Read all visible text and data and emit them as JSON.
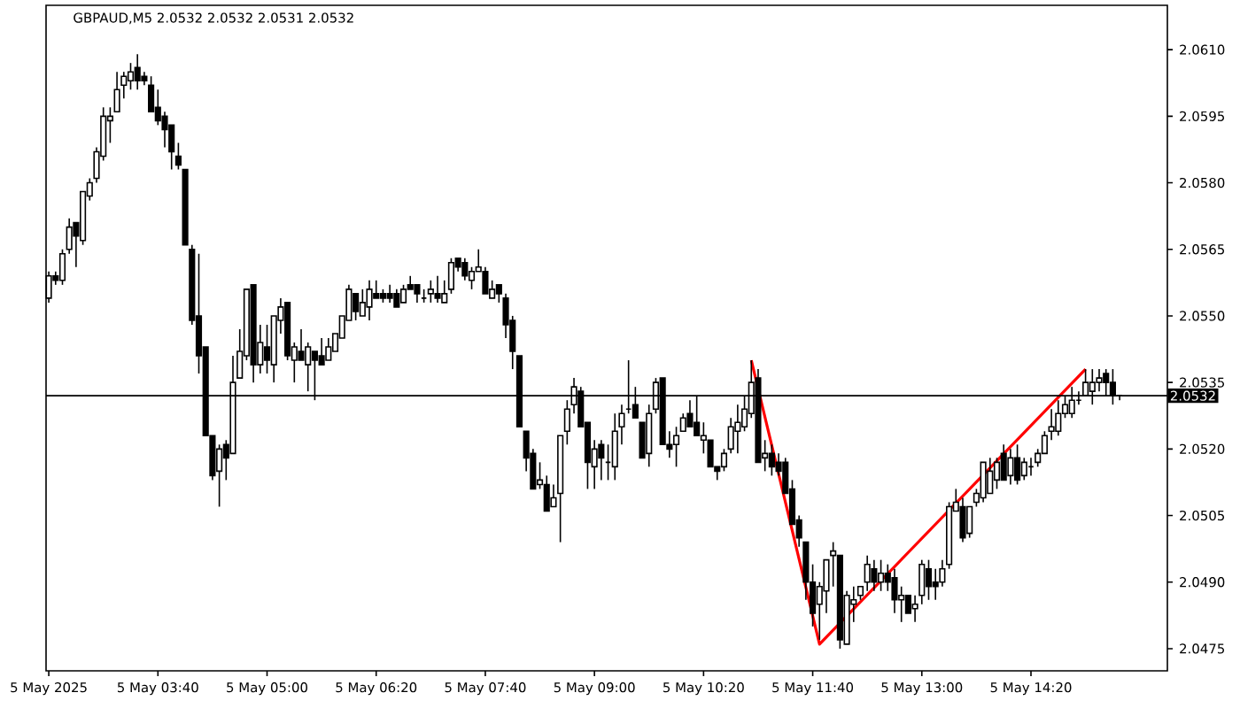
{
  "chart_data": {
    "type": "candlestick",
    "title": "GBPAUD,M5 2.0532 2.0532 2.0531 2.0532",
    "x": [
      "2025-05-05T02:20",
      "2025-05-05T02:25",
      "2025-05-05T02:30",
      "2025-05-05T02:35",
      "2025-05-05T02:40",
      "2025-05-05T02:45",
      "2025-05-05T02:50",
      "2025-05-05T02:55",
      "2025-05-05T03:00",
      "2025-05-05T03:05",
      "2025-05-05T03:10",
      "2025-05-05T03:15",
      "2025-05-05T03:20",
      "2025-05-05T03:25",
      "2025-05-05T03:30",
      "2025-05-05T03:35",
      "2025-05-05T03:40",
      "2025-05-05T03:45",
      "2025-05-05T03:50",
      "2025-05-05T03:55",
      "2025-05-05T04:00",
      "2025-05-05T04:05",
      "2025-05-05T04:10",
      "2025-05-05T04:15",
      "2025-05-05T04:20",
      "2025-05-05T04:25",
      "2025-05-05T04:30",
      "2025-05-05T04:35",
      "2025-05-05T04:40",
      "2025-05-05T04:45",
      "2025-05-05T04:50",
      "2025-05-05T04:55",
      "2025-05-05T05:00",
      "2025-05-05T05:05",
      "2025-05-05T05:10",
      "2025-05-05T05:15",
      "2025-05-05T05:20",
      "2025-05-05T05:25",
      "2025-05-05T05:30",
      "2025-05-05T05:35",
      "2025-05-05T05:40",
      "2025-05-05T05:45",
      "2025-05-05T05:50",
      "2025-05-05T05:55",
      "2025-05-05T06:00",
      "2025-05-05T06:05",
      "2025-05-05T06:10",
      "2025-05-05T06:15",
      "2025-05-05T06:20",
      "2025-05-05T06:25",
      "2025-05-05T06:30",
      "2025-05-05T06:35",
      "2025-05-05T06:40",
      "2025-05-05T06:45",
      "2025-05-05T06:50",
      "2025-05-05T06:55",
      "2025-05-05T07:00",
      "2025-05-05T07:05",
      "2025-05-05T07:10",
      "2025-05-05T07:15",
      "2025-05-05T07:20",
      "2025-05-05T07:25",
      "2025-05-05T07:30",
      "2025-05-05T07:35",
      "2025-05-05T07:40",
      "2025-05-05T07:45",
      "2025-05-05T07:50",
      "2025-05-05T07:55",
      "2025-05-05T08:00",
      "2025-05-05T08:05",
      "2025-05-05T08:10",
      "2025-05-05T08:15",
      "2025-05-05T08:20",
      "2025-05-05T08:25",
      "2025-05-05T08:30",
      "2025-05-05T08:35",
      "2025-05-05T08:40",
      "2025-05-05T08:45",
      "2025-05-05T08:50",
      "2025-05-05T08:55",
      "2025-05-05T09:00",
      "2025-05-05T09:05",
      "2025-05-05T09:10",
      "2025-05-05T09:15",
      "2025-05-05T09:20",
      "2025-05-05T09:25",
      "2025-05-05T09:30",
      "2025-05-05T09:35",
      "2025-05-05T09:40",
      "2025-05-05T09:45",
      "2025-05-05T09:50",
      "2025-05-05T09:55",
      "2025-05-05T10:00",
      "2025-05-05T10:05",
      "2025-05-05T10:10",
      "2025-05-05T10:15",
      "2025-05-05T10:20",
      "2025-05-05T10:25",
      "2025-05-05T10:30",
      "2025-05-05T10:35",
      "2025-05-05T10:40",
      "2025-05-05T10:45",
      "2025-05-05T10:50",
      "2025-05-05T10:55",
      "2025-05-05T11:00",
      "2025-05-05T11:05",
      "2025-05-05T11:10",
      "2025-05-05T11:15",
      "2025-05-05T11:20",
      "2025-05-05T11:25",
      "2025-05-05T11:30",
      "2025-05-05T11:35",
      "2025-05-05T11:40",
      "2025-05-05T11:45",
      "2025-05-05T11:50",
      "2025-05-05T11:55",
      "2025-05-05T12:00",
      "2025-05-05T12:05",
      "2025-05-05T12:10",
      "2025-05-05T12:15",
      "2025-05-05T12:20",
      "2025-05-05T12:25",
      "2025-05-05T12:30",
      "2025-05-05T12:35",
      "2025-05-05T12:40",
      "2025-05-05T12:45",
      "2025-05-05T12:50",
      "2025-05-05T12:55",
      "2025-05-05T13:00",
      "2025-05-05T13:05",
      "2025-05-05T13:10",
      "2025-05-05T13:15",
      "2025-05-05T13:20",
      "2025-05-05T13:25",
      "2025-05-05T13:30",
      "2025-05-05T13:35",
      "2025-05-05T13:40",
      "2025-05-05T13:45",
      "2025-05-05T13:50",
      "2025-05-05T13:55",
      "2025-05-05T14:00",
      "2025-05-05T14:05",
      "2025-05-05T14:10",
      "2025-05-05T14:15",
      "2025-05-05T14:20",
      "2025-05-05T14:25",
      "2025-05-05T14:30",
      "2025-05-05T14:35",
      "2025-05-05T14:40",
      "2025-05-05T14:45",
      "2025-05-05T14:50",
      "2025-05-05T14:55",
      "2025-05-05T15:00",
      "2025-05-05T15:05",
      "2025-05-05T15:10",
      "2025-05-05T15:15",
      "2025-05-05T15:20",
      "2025-05-05T15:25"
    ],
    "ohlc": [
      [
        2.0554,
        2.056,
        2.0553,
        2.0559
      ],
      [
        2.0559,
        2.056,
        2.0557,
        2.0558
      ],
      [
        2.0558,
        2.0565,
        2.0557,
        2.0564
      ],
      [
        2.0565,
        2.0572,
        2.0564,
        2.057
      ],
      [
        2.0571,
        2.0571,
        2.0561,
        2.0568
      ],
      [
        2.0567,
        2.0578,
        2.0566,
        2.0578
      ],
      [
        2.0577,
        2.0581,
        2.0576,
        2.058
      ],
      [
        2.0581,
        2.0588,
        2.058,
        2.0587
      ],
      [
        2.0586,
        2.0597,
        2.0585,
        2.0595
      ],
      [
        2.0594,
        2.0597,
        2.0589,
        2.0595
      ],
      [
        2.0596,
        2.0605,
        2.0596,
        2.0601
      ],
      [
        2.0602,
        2.0605,
        2.0599,
        2.0604
      ],
      [
        2.0603,
        2.0607,
        2.0601,
        2.0605
      ],
      [
        2.0606,
        2.0609,
        2.0601,
        2.0603
      ],
      [
        2.0604,
        2.0605,
        2.0602,
        2.0603
      ],
      [
        2.0602,
        2.0604,
        2.0596,
        2.0596
      ],
      [
        2.0597,
        2.0601,
        2.0593,
        2.0594
      ],
      [
        2.0595,
        2.0596,
        2.0588,
        2.0592
      ],
      [
        2.0593,
        2.0593,
        2.0583,
        2.0587
      ],
      [
        2.0586,
        2.0589,
        2.0583,
        2.0584
      ],
      [
        2.0583,
        2.0583,
        2.0566,
        2.0566
      ],
      [
        2.0565,
        2.0566,
        2.0548,
        2.0549
      ],
      [
        2.055,
        2.0564,
        2.0537,
        2.0541
      ],
      [
        2.0543,
        2.0543,
        2.0523,
        2.0523
      ],
      [
        2.0523,
        2.0523,
        2.0513,
        2.0514
      ],
      [
        2.0515,
        2.0521,
        2.0507,
        2.052
      ],
      [
        2.0521,
        2.0522,
        2.0513,
        2.0518
      ],
      [
        2.0519,
        2.0541,
        2.0519,
        2.0535
      ],
      [
        2.0536,
        2.0547,
        2.0536,
        2.0542
      ],
      [
        2.0541,
        2.0556,
        2.054,
        2.0556
      ],
      [
        2.0557,
        2.0557,
        2.0535,
        2.0539
      ],
      [
        2.0539,
        2.0548,
        2.0537,
        2.0544
      ],
      [
        2.0543,
        2.0548,
        2.0537,
        2.054
      ],
      [
        2.0539,
        2.055,
        2.0535,
        2.055
      ],
      [
        2.0549,
        2.0554,
        2.0546,
        2.0552
      ],
      [
        2.0553,
        2.0553,
        2.054,
        2.0541
      ],
      [
        2.054,
        2.0544,
        2.0535,
        2.0543
      ],
      [
        2.0542,
        2.0547,
        2.054,
        2.054
      ],
      [
        2.0539,
        2.0544,
        2.0533,
        2.0543
      ],
      [
        2.0542,
        2.0542,
        2.0531,
        2.054
      ],
      [
        2.0541,
        2.0545,
        2.0539,
        2.0539
      ],
      [
        2.054,
        2.0545,
        2.054,
        2.0543
      ],
      [
        2.0542,
        2.0546,
        2.0542,
        2.0546
      ],
      [
        2.0545,
        2.055,
        2.0545,
        2.055
      ],
      [
        2.0549,
        2.0557,
        2.0549,
        2.0556
      ],
      [
        2.0555,
        2.0555,
        2.0549,
        2.0551
      ],
      [
        2.055,
        2.0556,
        2.055,
        2.0553
      ],
      [
        2.0552,
        2.0558,
        2.0549,
        2.0556
      ],
      [
        2.0555,
        2.0558,
        2.0554,
        2.0554
      ],
      [
        2.0555,
        2.0556,
        2.0553,
        2.0554
      ],
      [
        2.0555,
        2.0557,
        2.0553,
        2.0554
      ],
      [
        2.0555,
        2.0556,
        2.0552,
        2.0552
      ],
      [
        2.0553,
        2.0557,
        2.0553,
        2.0556
      ],
      [
        2.0557,
        2.0559,
        2.0556,
        2.0556
      ],
      [
        2.0557,
        2.0557,
        2.0553,
        2.0555
      ],
      [
        2.0554,
        2.0556,
        2.0553,
        2.0554
      ],
      [
        2.0555,
        2.0558,
        2.0553,
        2.0556
      ],
      [
        2.0555,
        2.0559,
        2.0553,
        2.0554
      ],
      [
        2.0553,
        2.0558,
        2.0553,
        2.0555
      ],
      [
        2.0556,
        2.0563,
        2.0555,
        2.0562
      ],
      [
        2.0563,
        2.0563,
        2.056,
        2.0561
      ],
      [
        2.0562,
        2.0563,
        2.0558,
        2.0559
      ],
      [
        2.0558,
        2.0561,
        2.0556,
        2.056
      ],
      [
        2.056,
        2.0565,
        2.056,
        2.0561
      ],
      [
        2.056,
        2.0561,
        2.0555,
        2.0555
      ],
      [
        2.0554,
        2.0558,
        2.0554,
        2.0556
      ],
      [
        2.0557,
        2.0557,
        2.0553,
        2.0555
      ],
      [
        2.0554,
        2.0555,
        2.0545,
        2.0548
      ],
      [
        2.0549,
        2.055,
        2.0538,
        2.0542
      ],
      [
        2.0541,
        2.0541,
        2.0525,
        2.0525
      ],
      [
        2.0524,
        2.0524,
        2.0515,
        2.0518
      ],
      [
        2.0519,
        2.052,
        2.0511,
        2.0511
      ],
      [
        2.0512,
        2.0517,
        2.0511,
        2.0513
      ],
      [
        2.0512,
        2.0514,
        2.0506,
        2.0506
      ],
      [
        2.0507,
        2.0512,
        2.0507,
        2.0509
      ],
      [
        2.051,
        2.0523,
        2.0499,
        2.0523
      ],
      [
        2.0524,
        2.0531,
        2.0521,
        2.0529
      ],
      [
        2.053,
        2.0536,
        2.0528,
        2.0534
      ],
      [
        2.0533,
        2.0534,
        2.0525,
        2.0525
      ],
      [
        2.0526,
        2.0526,
        2.0511,
        2.0517
      ],
      [
        2.0516,
        2.0522,
        2.0511,
        2.052
      ],
      [
        2.0521,
        2.0522,
        2.0513,
        2.0518
      ],
      [
        2.0517,
        2.0521,
        2.0513,
        2.0517
      ],
      [
        2.0516,
        2.0528,
        2.0513,
        2.0524
      ],
      [
        2.0525,
        2.053,
        2.0521,
        2.0528
      ],
      [
        2.0529,
        2.054,
        2.0528,
        2.0529
      ],
      [
        2.053,
        2.0534,
        2.0527,
        2.0527
      ],
      [
        2.0526,
        2.0526,
        2.0518,
        2.0518
      ],
      [
        2.0519,
        2.053,
        2.0516,
        2.0528
      ],
      [
        2.0529,
        2.0536,
        2.0528,
        2.0535
      ],
      [
        2.0536,
        2.0536,
        2.0521,
        2.0521
      ],
      [
        2.0521,
        2.0524,
        2.0518,
        2.052
      ],
      [
        2.0521,
        2.0525,
        2.0516,
        2.0523
      ],
      [
        2.0524,
        2.0528,
        2.0524,
        2.0527
      ],
      [
        2.0528,
        2.0531,
        2.0525,
        2.0525
      ],
      [
        2.0526,
        2.0532,
        2.0523,
        2.0523
      ],
      [
        2.0522,
        2.0526,
        2.0519,
        2.0523
      ],
      [
        2.0522,
        2.0522,
        2.0516,
        2.0516
      ],
      [
        2.0516,
        2.0516,
        2.0513,
        2.0515
      ],
      [
        2.0516,
        2.052,
        2.0515,
        2.0519
      ],
      [
        2.052,
        2.0527,
        2.0519,
        2.0525
      ],
      [
        2.0524,
        2.053,
        2.0519,
        2.0526
      ],
      [
        2.0525,
        2.0532,
        2.0524,
        2.0529
      ],
      [
        2.0528,
        2.054,
        2.0527,
        2.0535
      ],
      [
        2.0536,
        2.0538,
        2.0517,
        2.0517
      ],
      [
        2.0518,
        2.0522,
        2.0515,
        2.0519
      ],
      [
        2.0519,
        2.0521,
        2.0514,
        2.0516
      ],
      [
        2.0517,
        2.0519,
        2.0514,
        2.0515
      ],
      [
        2.0517,
        2.0518,
        2.051,
        2.051
      ],
      [
        2.0511,
        2.0513,
        2.0503,
        2.0503
      ],
      [
        2.0504,
        2.0505,
        2.0498,
        2.05
      ],
      [
        2.0499,
        2.0499,
        2.0486,
        2.049
      ],
      [
        2.049,
        2.0494,
        2.048,
        2.0483
      ],
      [
        2.0485,
        2.049,
        2.0477,
        2.0489
      ],
      [
        2.0488,
        2.0495,
        2.0483,
        2.0495
      ],
      [
        2.0496,
        2.0499,
        2.0489,
        2.0497
      ],
      [
        2.0496,
        2.0496,
        2.0475,
        2.0477
      ],
      [
        2.0476,
        2.0488,
        2.0476,
        2.0487
      ],
      [
        2.0485,
        2.0489,
        2.0481,
        2.0486
      ],
      [
        2.0487,
        2.0489,
        2.0486,
        2.0489
      ],
      [
        2.049,
        2.0496,
        2.0488,
        2.0494
      ],
      [
        2.0493,
        2.0495,
        2.0488,
        2.049
      ],
      [
        2.049,
        2.0495,
        2.0488,
        2.0492
      ],
      [
        2.0492,
        2.0494,
        2.0488,
        2.049
      ],
      [
        2.0491,
        2.0493,
        2.0483,
        2.0486
      ],
      [
        2.0486,
        2.0489,
        2.0481,
        2.0487
      ],
      [
        2.0487,
        2.0487,
        2.0483,
        2.0483
      ],
      [
        2.0484,
        2.0487,
        2.0481,
        2.0485
      ],
      [
        2.0487,
        2.0495,
        2.0485,
        2.0494
      ],
      [
        2.0493,
        2.0495,
        2.0486,
        2.0489
      ],
      [
        2.049,
        2.0493,
        2.0486,
        2.0489
      ],
      [
        2.049,
        2.0495,
        2.0489,
        2.0493
      ],
      [
        2.0494,
        2.0508,
        2.0493,
        2.0507
      ],
      [
        2.0506,
        2.0511,
        2.0506,
        2.0508
      ],
      [
        2.0507,
        2.0509,
        2.0499,
        2.05
      ],
      [
        2.0501,
        2.0507,
        2.05,
        2.0507
      ],
      [
        2.0508,
        2.0511,
        2.0507,
        2.051
      ],
      [
        2.0509,
        2.0517,
        2.0508,
        2.0517
      ],
      [
        2.051,
        2.0518,
        2.051,
        2.0515
      ],
      [
        2.0513,
        2.0518,
        2.0511,
        2.0517
      ],
      [
        2.0519,
        2.0521,
        2.0513,
        2.0513
      ],
      [
        2.0514,
        2.052,
        2.0512,
        2.0518
      ],
      [
        2.0518,
        2.0521,
        2.0512,
        2.0513
      ],
      [
        2.0514,
        2.0518,
        2.0513,
        2.0517
      ],
      [
        2.0516,
        2.0518,
        2.0514,
        2.0516
      ],
      [
        2.0517,
        2.052,
        2.0516,
        2.0519
      ],
      [
        2.0519,
        2.0524,
        2.0519,
        2.0523
      ],
      [
        2.0524,
        2.0529,
        2.0522,
        2.0525
      ],
      [
        2.0524,
        2.0531,
        2.0523,
        2.0528
      ],
      [
        2.0528,
        2.0532,
        2.0527,
        2.053
      ],
      [
        2.0528,
        2.0534,
        2.0527,
        2.0531
      ],
      [
        2.0531,
        2.0533,
        2.053,
        2.0531
      ],
      [
        2.0532,
        2.0538,
        2.0532,
        2.0535
      ],
      [
        2.0533,
        2.0538,
        2.053,
        2.0535
      ],
      [
        2.0535,
        2.0538,
        2.0533,
        2.0536
      ],
      [
        2.0537,
        2.0538,
        2.0532,
        2.0535
      ],
      [
        2.0535,
        2.0538,
        2.053,
        2.0532
      ],
      [
        2.0532,
        2.0532,
        2.0531,
        2.0532
      ]
    ],
    "series": [
      {
        "type": "line",
        "color": "#ff0000",
        "x": [
          "2025-05-05T10:55",
          "2025-05-05T11:45",
          "2025-05-05T15:00"
        ],
        "values": [
          2.054,
          2.0476,
          2.0538
        ]
      }
    ],
    "xlim": [
      "2025-05-05T02:18",
      "2025-05-05T16:00"
    ],
    "xticks": [
      {
        "value": "2025-05-05T02:20",
        "label": "5 May 2025"
      },
      {
        "value": "2025-05-05T03:40",
        "label": "5 May 03:40"
      },
      {
        "value": "2025-05-05T05:00",
        "label": "5 May 05:00"
      },
      {
        "value": "2025-05-05T06:20",
        "label": "5 May 06:20"
      },
      {
        "value": "2025-05-05T07:40",
        "label": "5 May 07:40"
      },
      {
        "value": "2025-05-05T09:00",
        "label": "5 May 09:00"
      },
      {
        "value": "2025-05-05T10:20",
        "label": "5 May 10:20"
      },
      {
        "value": "2025-05-05T11:40",
        "label": "5 May 11:40"
      },
      {
        "value": "2025-05-05T13:00",
        "label": "5 May 13:00"
      },
      {
        "value": "2025-05-05T14:20",
        "label": "5 May 14:20"
      }
    ],
    "ylim": [
      2.047,
      2.062
    ],
    "yticks": [
      {
        "value": 2.0475,
        "label": "2.0475"
      },
      {
        "value": 2.049,
        "label": "2.0490"
      },
      {
        "value": 2.0505,
        "label": "2.0505"
      },
      {
        "value": 2.052,
        "label": "2.0520"
      },
      {
        "value": 2.0535,
        "label": "2.0535"
      },
      {
        "value": 2.055,
        "label": "2.0550"
      },
      {
        "value": 2.0565,
        "label": "2.0565"
      },
      {
        "value": 2.058,
        "label": "2.0580"
      },
      {
        "value": 2.0595,
        "label": "2.0595"
      },
      {
        "value": 2.061,
        "label": "2.0610"
      }
    ],
    "ref_lines": [
      {
        "axis": "y",
        "value": 2.0532,
        "label": "2.0532",
        "color": "#000000"
      }
    ]
  }
}
